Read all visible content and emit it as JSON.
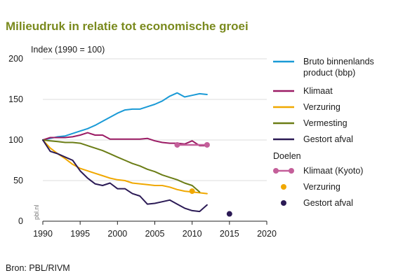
{
  "title": "Milieudruk in relatie tot economische groei",
  "y_axis_title": "Index (1990 = 100)",
  "source": "Bron: PBL/RIVM",
  "watermark": "pbl.nl",
  "legend": {
    "series_header": "",
    "goals_header": "Doelen",
    "items": [
      {
        "label_lines": [
          "Bruto binnenlands",
          "product (bbp)"
        ],
        "color": "#1a9ad6",
        "kind": "line"
      },
      {
        "label_lines": [
          "Klimaat"
        ],
        "color": "#9b1b64",
        "kind": "line"
      },
      {
        "label_lines": [
          "Verzuring"
        ],
        "color": "#f0a800",
        "kind": "line"
      },
      {
        "label_lines": [
          "Vermesting"
        ],
        "color": "#6b7d16",
        "kind": "line"
      },
      {
        "label_lines": [
          "Gestort afval"
        ],
        "color": "#2b1a55",
        "kind": "line"
      },
      {
        "label_lines": [
          "Klimaat (Kyoto)"
        ],
        "color": "#c45f9a",
        "kind": "kyoto"
      },
      {
        "label_lines": [
          "Verzuring"
        ],
        "color": "#f0a800",
        "kind": "dot"
      },
      {
        "label_lines": [
          "Gestort afval"
        ],
        "color": "#2b1a55",
        "kind": "dot"
      }
    ]
  },
  "chart_data": {
    "type": "line",
    "title": "Milieudruk in relatie tot economische groei",
    "ylabel": "Index (1990 = 100)",
    "xlabel": "",
    "xlim": [
      1990,
      2020
    ],
    "ylim": [
      0,
      200
    ],
    "x_ticks": [
      1990,
      1995,
      2000,
      2005,
      2010,
      2015,
      2020
    ],
    "y_ticks": [
      0,
      50,
      100,
      150,
      200
    ],
    "grid": "horizontal",
    "legend_position": "right",
    "series": [
      {
        "name": "Bruto binnenlands product (bbp)",
        "color": "#1a9ad6",
        "x": [
          1990,
          1991,
          1992,
          1993,
          1994,
          1995,
          1996,
          1997,
          1998,
          1999,
          2000,
          2001,
          2002,
          2003,
          2004,
          2005,
          2006,
          2007,
          2008,
          2009,
          2010,
          2011,
          2012
        ],
        "y": [
          100,
          102,
          104,
          105,
          108,
          111,
          114,
          118,
          123,
          128,
          133,
          137,
          138,
          138,
          141,
          144,
          148,
          154,
          158,
          153,
          155,
          157,
          156
        ]
      },
      {
        "name": "Klimaat",
        "color": "#9b1b64",
        "x": [
          1990,
          1991,
          1992,
          1993,
          1994,
          1995,
          1996,
          1997,
          1998,
          1999,
          2000,
          2001,
          2002,
          2003,
          2004,
          2005,
          2006,
          2007,
          2008,
          2009,
          2010,
          2011,
          2012
        ],
        "y": [
          100,
          103,
          103,
          103,
          104,
          106,
          109,
          106,
          106,
          101,
          101,
          101,
          101,
          101,
          102,
          99,
          97,
          96,
          96,
          95,
          99,
          93,
          93
        ]
      },
      {
        "name": "Verzuring",
        "color": "#f0a800",
        "x": [
          1990,
          1991,
          1992,
          1993,
          1994,
          1995,
          1996,
          1997,
          1998,
          1999,
          2000,
          2001,
          2002,
          2003,
          2004,
          2005,
          2006,
          2007,
          2008,
          2009,
          2010,
          2011,
          2012
        ],
        "y": [
          100,
          90,
          83,
          77,
          70,
          65,
          62,
          59,
          56,
          53,
          51,
          50,
          47,
          46,
          45,
          44,
          44,
          42,
          39,
          37,
          36,
          35,
          34
        ]
      },
      {
        "name": "Vermesting",
        "color": "#6b7d16",
        "x": [
          1990,
          1991,
          1992,
          1993,
          1994,
          1995,
          1996,
          1997,
          1998,
          1999,
          2000,
          2001,
          2002,
          2003,
          2004,
          2005,
          2006,
          2007,
          2008,
          2009,
          2010,
          2011
        ],
        "y": [
          100,
          99,
          98,
          97,
          97,
          96,
          93,
          90,
          87,
          83,
          79,
          75,
          71,
          68,
          64,
          61,
          57,
          54,
          51,
          47,
          44,
          36
        ]
      },
      {
        "name": "Gestort afval",
        "color": "#2b1a55",
        "x": [
          1990,
          1991,
          1992,
          1993,
          1994,
          1995,
          1996,
          1997,
          1998,
          1999,
          2000,
          2001,
          2002,
          2003,
          2004,
          2005,
          2006,
          2007,
          2008,
          2009,
          2010,
          2011,
          2012
        ],
        "y": [
          100,
          86,
          83,
          79,
          75,
          62,
          53,
          46,
          44,
          47,
          40,
          40,
          34,
          31,
          21,
          22,
          24,
          26,
          21,
          16,
          13,
          12,
          20
        ]
      }
    ],
    "targets": [
      {
        "name": "Klimaat (Kyoto)",
        "color": "#c45f9a",
        "kind": "kyoto",
        "x": [
          2008,
          2012
        ],
        "y": [
          94,
          94
        ]
      },
      {
        "name": "Verzuring",
        "color": "#f0a800",
        "kind": "dot",
        "x": [
          2010
        ],
        "y": [
          37
        ]
      },
      {
        "name": "Gestort afval",
        "color": "#2b1a55",
        "kind": "dot",
        "x": [
          2015
        ],
        "y": [
          9
        ]
      }
    ]
  }
}
